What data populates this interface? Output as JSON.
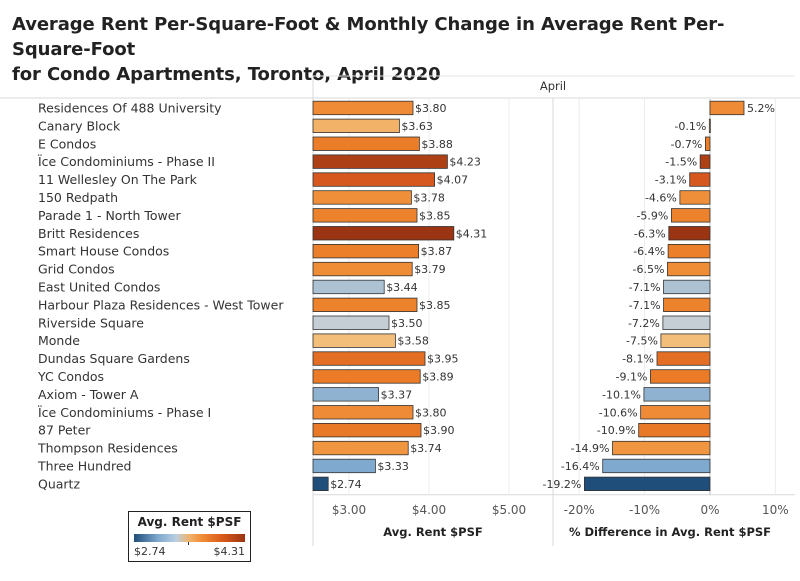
{
  "title_lines": [
    "Average Rent Per-Square-Foot & Monthly Change in Average Rent Per-Square-Foot",
    "for Condo Apartments, Toronto, April 2020"
  ],
  "header": {
    "month": "April"
  },
  "legend": {
    "title": "Avg. Rent $PSF",
    "min": "$2.74",
    "max": "$4.31"
  },
  "colors": {
    "min": "#1f4e7a",
    "mid": "#f2b26a",
    "max": "#9a3412",
    "text": "#333333",
    "grid": "#e6e6e6"
  },
  "chart_data": [
    {
      "type": "bar",
      "orientation": "horizontal",
      "categories": [
        "Residences Of 488 University",
        "Canary Block",
        "E Condos",
        "Ïce Condominiums - Phase II",
        "11 Wellesley On The Park",
        "150 Redpath",
        "Parade 1 - North Tower",
        "Britt Residences",
        "Smart House Condos",
        "Grid Condos",
        "East United Condos",
        "Harbour Plaza Residences - West Tower",
        "Riverside Square",
        "Monde",
        "Dundas Square Gardens",
        "YC Condos",
        "Axiom - Tower A",
        "Ïce Condominiums - Phase I",
        "87 Peter",
        "Thompson Residences",
        "Three Hundred",
        "Quartz"
      ],
      "values": [
        3.8,
        3.63,
        3.88,
        4.23,
        4.07,
        3.78,
        3.85,
        4.31,
        3.87,
        3.79,
        3.44,
        3.85,
        3.5,
        3.58,
        3.95,
        3.89,
        3.37,
        3.8,
        3.9,
        3.74,
        3.33,
        2.74
      ],
      "value_labels": [
        "$3.80",
        "$3.63",
        "$3.88",
        "$4.23",
        "$4.07",
        "$3.78",
        "$3.85",
        "$4.31",
        "$3.87",
        "$3.79",
        "$3.44",
        "$3.85",
        "$3.50",
        "$3.58",
        "$3.95",
        "$3.89",
        "$3.37",
        "$3.80",
        "$3.90",
        "$3.74",
        "$3.33",
        "$2.74"
      ],
      "xlabel": "Avg. Rent $PSF",
      "xlim": [
        2.55,
        5.55
      ],
      "ticks": [
        {
          "value": 3.0,
          "label": "$3.00"
        },
        {
          "value": 4.0,
          "label": "$4.00"
        },
        {
          "value": 5.0,
          "label": "$5.00"
        }
      ],
      "color_by": "value",
      "grid": true
    },
    {
      "type": "bar",
      "orientation": "horizontal",
      "categories": [
        "Residences Of 488 University",
        "Canary Block",
        "E Condos",
        "Ïce Condominiums - Phase II",
        "11 Wellesley On The Park",
        "150 Redpath",
        "Parade 1 - North Tower",
        "Britt Residences",
        "Smart House Condos",
        "Grid Condos",
        "East United Condos",
        "Harbour Plaza Residences - West Tower",
        "Riverside Square",
        "Monde",
        "Dundas Square Gardens",
        "YC Condos",
        "Axiom - Tower A",
        "Ïce Condominiums - Phase I",
        "87 Peter",
        "Thompson Residences",
        "Three Hundred",
        "Quartz"
      ],
      "values": [
        5.2,
        -0.1,
        -0.7,
        -1.5,
        -3.1,
        -4.6,
        -5.9,
        -6.3,
        -6.4,
        -6.5,
        -7.1,
        -7.1,
        -7.2,
        -7.5,
        -8.1,
        -9.1,
        -10.1,
        -10.6,
        -10.9,
        -14.9,
        -16.4,
        -19.2
      ],
      "value_labels": [
        "5.2%",
        "-0.1%",
        "-0.7%",
        "-1.5%",
        "-3.1%",
        "-4.6%",
        "-5.9%",
        "-6.3%",
        "-6.4%",
        "-6.5%",
        "-7.1%",
        "-7.1%",
        "-7.2%",
        "-7.5%",
        "-8.1%",
        "-9.1%",
        "-10.1%",
        "-10.6%",
        "-10.9%",
        "-14.9%",
        "-16.4%",
        "-19.2%"
      ],
      "xlabel": "% Difference in Avg. Rent $PSF",
      "xlim": [
        -24,
        13
      ],
      "ticks": [
        {
          "value": -20,
          "label": "-20%"
        },
        {
          "value": -10,
          "label": "-10%"
        },
        {
          "value": 0,
          "label": "0%"
        },
        {
          "value": 10,
          "label": "10%"
        }
      ],
      "color_by": "avg_rent_psf",
      "grid": true
    }
  ]
}
